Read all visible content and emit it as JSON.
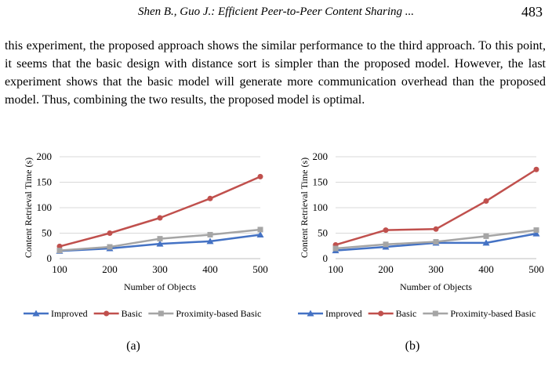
{
  "header": {
    "running_title": "Shen B., Guo J.: Efficient Peer-to-Peer Content Sharing ...",
    "page_number": "483"
  },
  "paragraph": "this experiment, the proposed approach shows the similar performance to the third approach. To this point, it seems that the basic design with distance sort is simpler than the proposed model. However, the last experiment shows that the basic model will generate more communication overhead than the proposed model. Thus, combining the two results, the proposed model is optimal.",
  "colors": {
    "improved": "#4472c4",
    "basic": "#c0504d",
    "proximity": "#a5a5a5",
    "gridline": "#d9d9d9",
    "axis": "#bfbfbf"
  },
  "chart_data": [
    {
      "type": "line",
      "caption": "(a)",
      "xlabel": "Number of Objects",
      "ylabel": "Content Retrieval Time (s)",
      "x": [
        100,
        200,
        300,
        400,
        500
      ],
      "ylim": [
        0,
        200
      ],
      "yticks": [
        0,
        50,
        100,
        150,
        200
      ],
      "grid": true,
      "legend_position": "bottom",
      "series": [
        {
          "name": "Improved",
          "marker": "triangle",
          "values": [
            15,
            20,
            29,
            34,
            47
          ]
        },
        {
          "name": "Basic",
          "marker": "circle",
          "values": [
            24,
            50,
            80,
            118,
            161
          ]
        },
        {
          "name": "Proximity-based Basic",
          "marker": "square",
          "values": [
            16,
            23,
            39,
            47,
            57
          ]
        }
      ]
    },
    {
      "type": "line",
      "caption": "(b)",
      "xlabel": "Number of Objects",
      "ylabel": "Content Retrieval Time (s)",
      "x": [
        100,
        200,
        300,
        400,
        500
      ],
      "ylim": [
        0,
        200
      ],
      "yticks": [
        0,
        50,
        100,
        150,
        200
      ],
      "grid": true,
      "legend_position": "bottom",
      "series": [
        {
          "name": "Improved",
          "marker": "triangle",
          "values": [
            16,
            23,
            31,
            31,
            49
          ]
        },
        {
          "name": "Basic",
          "marker": "circle",
          "values": [
            27,
            56,
            58,
            113,
            175
          ]
        },
        {
          "name": "Proximity-based Basic",
          "marker": "square",
          "values": [
            20,
            28,
            33,
            44,
            56
          ]
        }
      ]
    }
  ]
}
